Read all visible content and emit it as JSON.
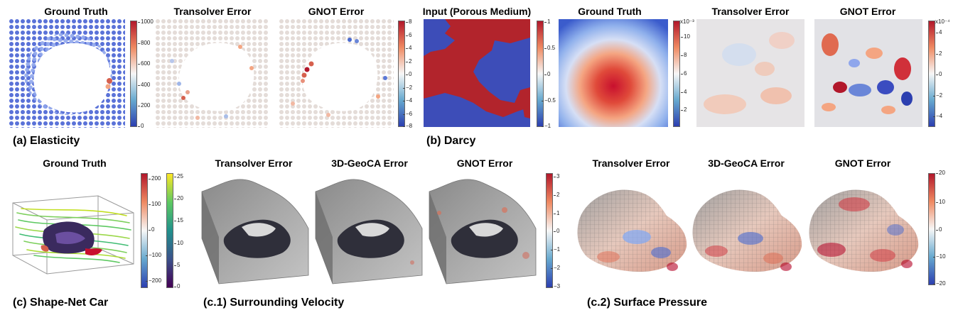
{
  "row1": {
    "elasticity": {
      "titles": [
        "Ground Truth",
        "Transolver Error",
        "GNOT Error"
      ],
      "caption": "(a) Elasticity",
      "gt_ticks": [
        "1000",
        "800",
        "600",
        "400",
        "200",
        "0"
      ],
      "err_ticks": [
        "8",
        "6",
        "4",
        "2",
        "0",
        "−2",
        "−4",
        "−6",
        "−8"
      ]
    },
    "darcy": {
      "titles": [
        "Input (Porous Medium)",
        "Ground Truth",
        "Transolver Error",
        "GNOT Error"
      ],
      "caption": "(b) Darcy",
      "input_ticks": [
        "1",
        "0.5",
        "0",
        "−0.5",
        "−1"
      ],
      "gt_exponent": "x10⁻³",
      "gt_ticks": [
        "10",
        "8",
        "6",
        "4",
        "2"
      ],
      "err_exponent": "x10⁻⁴",
      "err_ticks": [
        "4",
        "2",
        "0",
        "−2",
        "−4"
      ]
    }
  },
  "row2": {
    "shapenet": {
      "title": "Ground Truth",
      "caption": "(c) Shape-Net Car",
      "pressure_ticks": [
        "200",
        "100",
        "0",
        "−100",
        "−200"
      ],
      "velocity_ticks": [
        "25",
        "20",
        "15",
        "10",
        "5",
        "0"
      ]
    },
    "velocity": {
      "titles": [
        "Transolver Error",
        "3D-GeoCA Error",
        "GNOT Error"
      ],
      "caption": "(c.1) Surrounding Velocity",
      "ticks": [
        "3",
        "2",
        "1",
        "0",
        "−1",
        "−2",
        "−3"
      ]
    },
    "pressure": {
      "titles": [
        "Transolver Error",
        "3D-GeoCA Error",
        "GNOT Error"
      ],
      "caption": "(c.2) Surface Pressure",
      "ticks": [
        "20",
        "10",
        "0",
        "−10",
        "−20"
      ]
    }
  }
}
